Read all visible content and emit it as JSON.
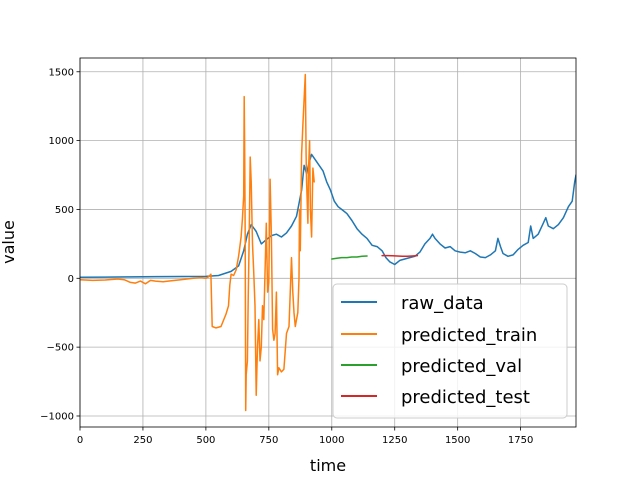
{
  "chart_data": {
    "type": "line",
    "title": "",
    "xlabel": "time",
    "ylabel": "value",
    "xlim": [
      0,
      1970
    ],
    "ylim": [
      -1080,
      1600
    ],
    "xticks": [
      0,
      250,
      500,
      750,
      1000,
      1250,
      1500,
      1750
    ],
    "xtick_labels": [
      "0",
      "250",
      "500",
      "750",
      "1000",
      "1250",
      "1500",
      "1750"
    ],
    "yticks": [
      -1000,
      -500,
      0,
      500,
      1000,
      1500
    ],
    "ytick_labels": [
      "−1000",
      "−500",
      "0",
      "500",
      "1000",
      "1500"
    ],
    "grid": true,
    "legend_position": "lower-right",
    "series": [
      {
        "name": "raw_data",
        "color": "#1f77b4",
        "points": [
          [
            0,
            8
          ],
          [
            100,
            9
          ],
          [
            200,
            10
          ],
          [
            300,
            12
          ],
          [
            400,
            13
          ],
          [
            500,
            14
          ],
          [
            550,
            20
          ],
          [
            600,
            50
          ],
          [
            630,
            90
          ],
          [
            650,
            200
          ],
          [
            665,
            320
          ],
          [
            680,
            390
          ],
          [
            700,
            340
          ],
          [
            720,
            250
          ],
          [
            740,
            280
          ],
          [
            760,
            310
          ],
          [
            780,
            320
          ],
          [
            800,
            300
          ],
          [
            820,
            330
          ],
          [
            840,
            380
          ],
          [
            860,
            450
          ],
          [
            880,
            640
          ],
          [
            890,
            820
          ],
          [
            900,
            760
          ],
          [
            910,
            840
          ],
          [
            920,
            900
          ],
          [
            935,
            860
          ],
          [
            950,
            820
          ],
          [
            965,
            780
          ],
          [
            980,
            700
          ],
          [
            995,
            640
          ],
          [
            1010,
            560
          ],
          [
            1025,
            520
          ],
          [
            1040,
            500
          ],
          [
            1060,
            470
          ],
          [
            1080,
            420
          ],
          [
            1100,
            360
          ],
          [
            1120,
            320
          ],
          [
            1140,
            290
          ],
          [
            1160,
            240
          ],
          [
            1180,
            230
          ],
          [
            1200,
            200
          ],
          [
            1215,
            150
          ],
          [
            1230,
            120
          ],
          [
            1250,
            100
          ],
          [
            1270,
            130
          ],
          [
            1290,
            140
          ],
          [
            1310,
            150
          ],
          [
            1330,
            160
          ],
          [
            1350,
            190
          ],
          [
            1370,
            250
          ],
          [
            1390,
            290
          ],
          [
            1400,
            320
          ],
          [
            1410,
            290
          ],
          [
            1430,
            250
          ],
          [
            1450,
            220
          ],
          [
            1470,
            230
          ],
          [
            1490,
            200
          ],
          [
            1510,
            190
          ],
          [
            1530,
            185
          ],
          [
            1550,
            200
          ],
          [
            1570,
            180
          ],
          [
            1590,
            155
          ],
          [
            1610,
            150
          ],
          [
            1630,
            170
          ],
          [
            1650,
            200
          ],
          [
            1660,
            290
          ],
          [
            1670,
            230
          ],
          [
            1680,
            180
          ],
          [
            1700,
            160
          ],
          [
            1720,
            170
          ],
          [
            1740,
            210
          ],
          [
            1760,
            240
          ],
          [
            1780,
            260
          ],
          [
            1790,
            380
          ],
          [
            1800,
            290
          ],
          [
            1820,
            320
          ],
          [
            1840,
            400
          ],
          [
            1850,
            440
          ],
          [
            1860,
            380
          ],
          [
            1880,
            360
          ],
          [
            1900,
            390
          ],
          [
            1920,
            440
          ],
          [
            1940,
            520
          ],
          [
            1955,
            560
          ],
          [
            1965,
            700
          ],
          [
            1970,
            750
          ]
        ]
      },
      {
        "name": "predicted_train",
        "color": "#ff7f0e",
        "points": [
          [
            0,
            -10
          ],
          [
            50,
            -15
          ],
          [
            100,
            -12
          ],
          [
            150,
            -5
          ],
          [
            175,
            -10
          ],
          [
            200,
            -30
          ],
          [
            220,
            -35
          ],
          [
            240,
            -20
          ],
          [
            260,
            -40
          ],
          [
            280,
            -15
          ],
          [
            300,
            -20
          ],
          [
            330,
            -25
          ],
          [
            350,
            -20
          ],
          [
            400,
            -10
          ],
          [
            450,
            0
          ],
          [
            480,
            5
          ],
          [
            500,
            0
          ],
          [
            510,
            10
          ],
          [
            520,
            30
          ],
          [
            525,
            -350
          ],
          [
            540,
            -360
          ],
          [
            560,
            -350
          ],
          [
            580,
            -260
          ],
          [
            590,
            -200
          ],
          [
            595,
            -50
          ],
          [
            600,
            30
          ],
          [
            610,
            20
          ],
          [
            620,
            60
          ],
          [
            630,
            160
          ],
          [
            640,
            300
          ],
          [
            645,
            430
          ],
          [
            650,
            600
          ],
          [
            652,
            1320
          ],
          [
            654,
            900
          ],
          [
            656,
            300
          ],
          [
            658,
            -960
          ],
          [
            660,
            -700
          ],
          [
            665,
            -600
          ],
          [
            668,
            -150
          ],
          [
            672,
            300
          ],
          [
            676,
            880
          ],
          [
            680,
            700
          ],
          [
            685,
            250
          ],
          [
            690,
            50
          ],
          [
            695,
            -200
          ],
          [
            700,
            -850
          ],
          [
            705,
            -500
          ],
          [
            710,
            -300
          ],
          [
            715,
            -600
          ],
          [
            720,
            -500
          ],
          [
            725,
            -200
          ],
          [
            730,
            -300
          ],
          [
            740,
            400
          ],
          [
            745,
            -100
          ],
          [
            750,
            -30
          ],
          [
            755,
            720
          ],
          [
            760,
            300
          ],
          [
            765,
            -370
          ],
          [
            770,
            -450
          ],
          [
            775,
            -400
          ],
          [
            780,
            -100
          ],
          [
            785,
            -700
          ],
          [
            790,
            -650
          ],
          [
            800,
            -680
          ],
          [
            810,
            -660
          ],
          [
            820,
            -400
          ],
          [
            830,
            -350
          ],
          [
            840,
            150
          ],
          [
            845,
            -100
          ],
          [
            850,
            -250
          ],
          [
            855,
            -350
          ],
          [
            860,
            -300
          ],
          [
            865,
            -250
          ],
          [
            870,
            0
          ],
          [
            872,
            500
          ],
          [
            875,
            200
          ],
          [
            880,
            900
          ],
          [
            885,
            1100
          ],
          [
            890,
            1300
          ],
          [
            895,
            1480
          ],
          [
            898,
            900
          ],
          [
            900,
            700
          ],
          [
            905,
            400
          ],
          [
            908,
            800
          ],
          [
            912,
            1000
          ],
          [
            915,
            500
          ],
          [
            920,
            300
          ],
          [
            925,
            800
          ],
          [
            930,
            700
          ]
        ]
      },
      {
        "name": "predicted_val",
        "color": "#2ca02c",
        "points": [
          [
            1000,
            140
          ],
          [
            1020,
            145
          ],
          [
            1040,
            150
          ],
          [
            1060,
            150
          ],
          [
            1080,
            155
          ],
          [
            1100,
            155
          ],
          [
            1120,
            160
          ],
          [
            1140,
            162
          ]
        ]
      },
      {
        "name": "predicted_test",
        "color": "#d62728",
        "points": [
          [
            1200,
            165
          ],
          [
            1220,
            165
          ],
          [
            1240,
            164
          ],
          [
            1260,
            162
          ],
          [
            1280,
            160
          ],
          [
            1300,
            160
          ],
          [
            1320,
            162
          ],
          [
            1340,
            165
          ]
        ]
      }
    ]
  }
}
